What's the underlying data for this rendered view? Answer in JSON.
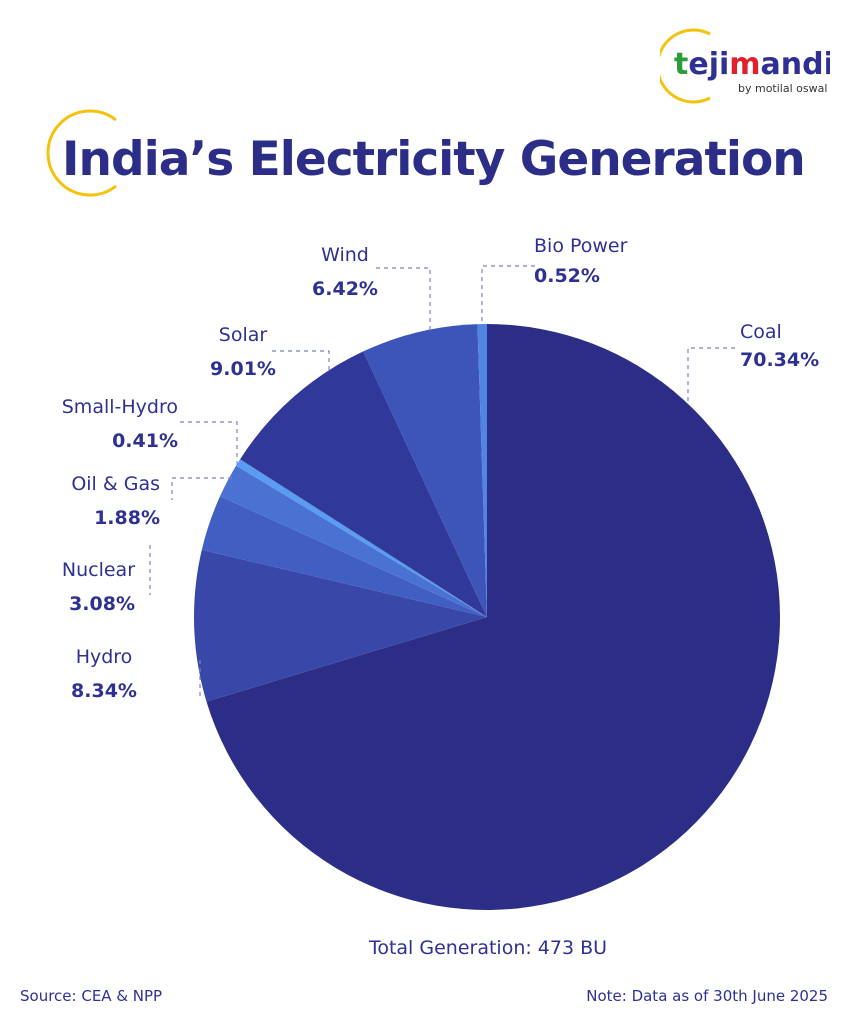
{
  "logo": {
    "brand": "tejimandi",
    "tagline": "by motilal oswal"
  },
  "title": "India’s Electricity Generation",
  "chart_data": {
    "type": "pie",
    "title": "India’s Electricity Generation",
    "start_angle": "12 o'clock, clockwise",
    "slices": [
      {
        "label": "Coal",
        "value": 70.34,
        "display": "70.34%",
        "color": "#2b2d86"
      },
      {
        "label": "Hydro",
        "value": 8.34,
        "display": "8.34%",
        "color": "#3947a8"
      },
      {
        "label": "Nuclear",
        "value": 3.08,
        "display": "3.08%",
        "color": "#415fc2"
      },
      {
        "label": "Oil & Gas",
        "value": 1.88,
        "display": "1.88%",
        "color": "#4a72d2"
      },
      {
        "label": "Small-Hydro",
        "value": 0.41,
        "display": "0.41%",
        "color": "#5a9cf2"
      },
      {
        "label": "Solar",
        "value": 9.01,
        "display": "9.01%",
        "color": "#30399a"
      },
      {
        "label": "Wind",
        "value": 6.42,
        "display": "6.42%",
        "color": "#3d55b9"
      },
      {
        "label": "Bio Power",
        "value": 0.52,
        "display": "0.52%",
        "color": "#5085e2"
      }
    ]
  },
  "total": "Total Generation: 473 BU",
  "source": "Source: CEA & NPP",
  "note": "Note: Data as of 30th June 2025"
}
